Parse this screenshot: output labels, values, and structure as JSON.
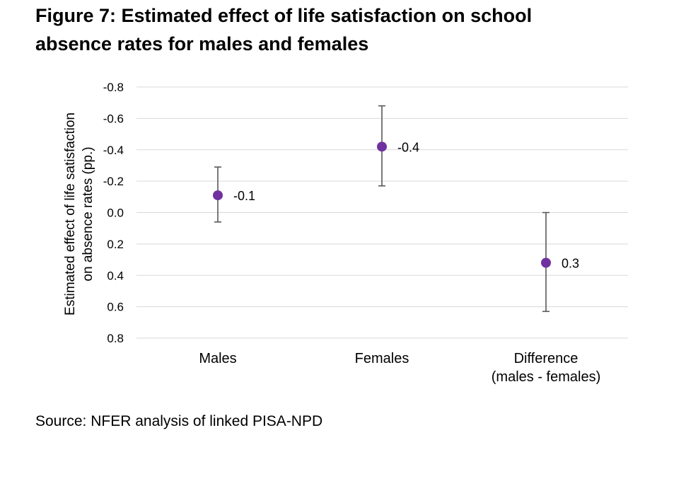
{
  "figure": {
    "title_lines": [
      "Figure 7: Estimated effect of life satisfaction on school",
      "absence rates for males and females"
    ],
    "source": "Source: NFER analysis of linked PISA-NPD"
  },
  "chart_data": {
    "type": "scatter",
    "subtype": "point-estimate with error bars",
    "title": "Figure 7: Estimated effect of life satisfaction on school absence rates for males and females",
    "ylabel_lines": [
      "Estimated effect of life satisfaction",
      "on absence rates (pp.)"
    ],
    "xlabel": "",
    "y_reversed": true,
    "ylim": [
      -0.8,
      0.8
    ],
    "yticks": [
      -0.8,
      -0.6,
      -0.4,
      -0.2,
      0.0,
      0.2,
      0.4,
      0.6,
      0.8
    ],
    "ytick_labels": [
      "-0.8",
      "-0.6",
      "-0.4",
      "-0.2",
      "0.0",
      "0.2",
      "0.4",
      "0.6",
      "0.8"
    ],
    "grid": true,
    "legend": "none",
    "categories": [
      {
        "label_lines": [
          "Males"
        ]
      },
      {
        "label_lines": [
          "Females"
        ]
      },
      {
        "label_lines": [
          "Difference",
          "(males - females)"
        ]
      }
    ],
    "values": [
      -0.11,
      -0.42,
      0.32
    ],
    "error_low": [
      -0.29,
      -0.68,
      0.0
    ],
    "error_high": [
      0.06,
      -0.17,
      0.63
    ],
    "data_labels": [
      "-0.1",
      "-0.4",
      "0.3"
    ],
    "colors": {
      "point": "#7030A0",
      "error_bar": "#595959",
      "grid": "#d9d9d9",
      "text": "#000000"
    }
  }
}
